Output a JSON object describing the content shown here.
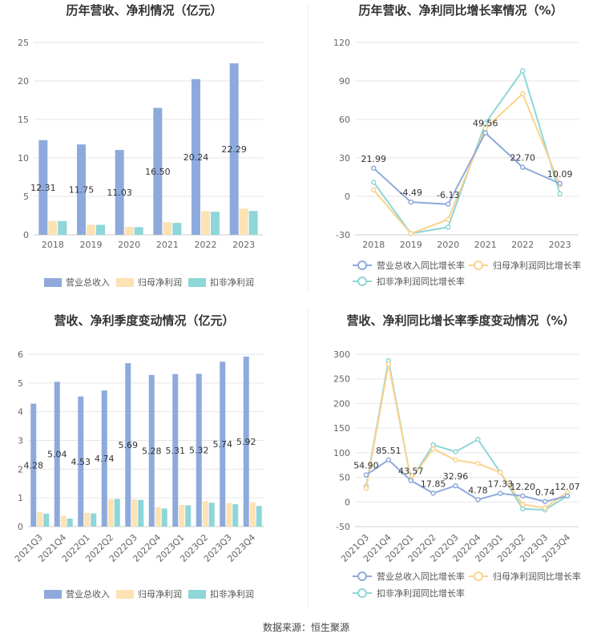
{
  "source": "数据来源：恒生聚源",
  "colors": {
    "revenue": "#8eaadc",
    "parent_profit": "#fde2b4",
    "deducted_profit": "#8ed6d8",
    "revenue_line": "#8eaadc",
    "parent_line": "#fbd38d",
    "deducted_line": "#8ed6d8",
    "grid": "#e6e6e6",
    "axis": "#cccccc"
  },
  "chart_data": [
    {
      "type": "bar",
      "title": "历年营收、净利情况（亿元）",
      "categories": [
        "2018",
        "2019",
        "2020",
        "2021",
        "2022",
        "2023"
      ],
      "ylim": [
        0,
        25
      ],
      "yticks": [
        0,
        5,
        10,
        15,
        20,
        25
      ],
      "grid": true,
      "legend_position": "bottom",
      "series": [
        {
          "name": "营业总收入",
          "values": [
            12.31,
            11.75,
            11.03,
            16.5,
            20.24,
            22.29
          ],
          "labels": [
            "12.31",
            "11.75",
            "11.03",
            "16.50",
            "20.24",
            "22.29"
          ]
        },
        {
          "name": "归母净利润",
          "values": [
            1.8,
            1.3,
            1.05,
            1.65,
            3.1,
            3.4
          ]
        },
        {
          "name": "扣非净利润",
          "values": [
            1.8,
            1.3,
            1.0,
            1.55,
            3.0,
            3.1
          ]
        }
      ]
    },
    {
      "type": "line",
      "title": "历年营收、净利同比增长率情况（%）",
      "categories": [
        "2018",
        "2019",
        "2020",
        "2021",
        "2022",
        "2023"
      ],
      "ylim": [
        -30,
        120
      ],
      "yticks": [
        -30,
        0,
        30,
        60,
        90,
        120
      ],
      "grid": true,
      "legend_position": "bottom",
      "series": [
        {
          "name": "营业总收入同比增长率",
          "values": [
            21.99,
            -4.49,
            -6.13,
            49.56,
            22.7,
            10.09
          ],
          "labels": [
            "21.99",
            "-4.49",
            "-6.13",
            "49.56",
            "22.70",
            "10.09"
          ]
        },
        {
          "name": "归母净利润同比增长率",
          "values": [
            5,
            -29,
            -18,
            53,
            80,
            9
          ]
        },
        {
          "name": "扣非净利润同比增长率",
          "values": [
            11,
            -29,
            -24,
            57,
            98,
            2
          ]
        }
      ]
    },
    {
      "type": "bar",
      "title": "营收、净利季度变动情况（亿元）",
      "categories": [
        "2021Q3",
        "2021Q4",
        "2022Q1",
        "2022Q2",
        "2022Q3",
        "2022Q4",
        "2023Q1",
        "2023Q2",
        "2023Q3",
        "2023Q4"
      ],
      "ylim": [
        0,
        6
      ],
      "yticks": [
        0,
        1,
        2,
        3,
        4,
        5,
        6
      ],
      "grid": true,
      "legend_position": "bottom",
      "series": [
        {
          "name": "营业总收入",
          "values": [
            4.28,
            5.04,
            4.53,
            4.74,
            5.69,
            5.28,
            5.31,
            5.32,
            5.74,
            5.92
          ],
          "labels": [
            "4.28",
            "5.04",
            "4.53",
            "4.74",
            "5.69",
            "5.28",
            "5.31",
            "5.32",
            "5.74",
            "5.92"
          ]
        },
        {
          "name": "归母净利润",
          "values": [
            0.5,
            0.38,
            0.48,
            0.95,
            0.95,
            0.68,
            0.75,
            0.88,
            0.82,
            0.85
          ]
        },
        {
          "name": "扣非净利润",
          "values": [
            0.45,
            0.28,
            0.46,
            0.96,
            0.93,
            0.63,
            0.74,
            0.83,
            0.78,
            0.72
          ]
        }
      ]
    },
    {
      "type": "line",
      "title": "营收、净利同比增长率季度变动情况（%）",
      "categories": [
        "2021Q3",
        "2021Q4",
        "2022Q1",
        "2022Q2",
        "2022Q3",
        "2022Q4",
        "2023Q1",
        "2023Q2",
        "2023Q3",
        "2023Q4"
      ],
      "ylim": [
        -50,
        300
      ],
      "yticks": [
        -50,
        0,
        50,
        100,
        150,
        200,
        250,
        300
      ],
      "grid": true,
      "legend_position": "bottom",
      "series": [
        {
          "name": "营业总收入同比增长率",
          "values": [
            54.9,
            85.51,
            43.57,
            17.85,
            32.96,
            4.78,
            17.33,
            12.2,
            0.74,
            12.07
          ],
          "labels": [
            "54.90",
            "85.51",
            "43.57",
            "17.85",
            "32.96",
            "4.78",
            "17.33",
            "12.20",
            "0.74",
            "12.07"
          ]
        },
        {
          "name": "归母净利润同比增长率",
          "values": [
            28,
            280,
            45,
            108,
            85,
            78,
            60,
            -5,
            -12,
            20
          ]
        },
        {
          "name": "扣非净利润同比增长率",
          "values": [
            32,
            287,
            45,
            116,
            102,
            127,
            60,
            -14,
            -16,
            12
          ]
        }
      ]
    }
  ]
}
